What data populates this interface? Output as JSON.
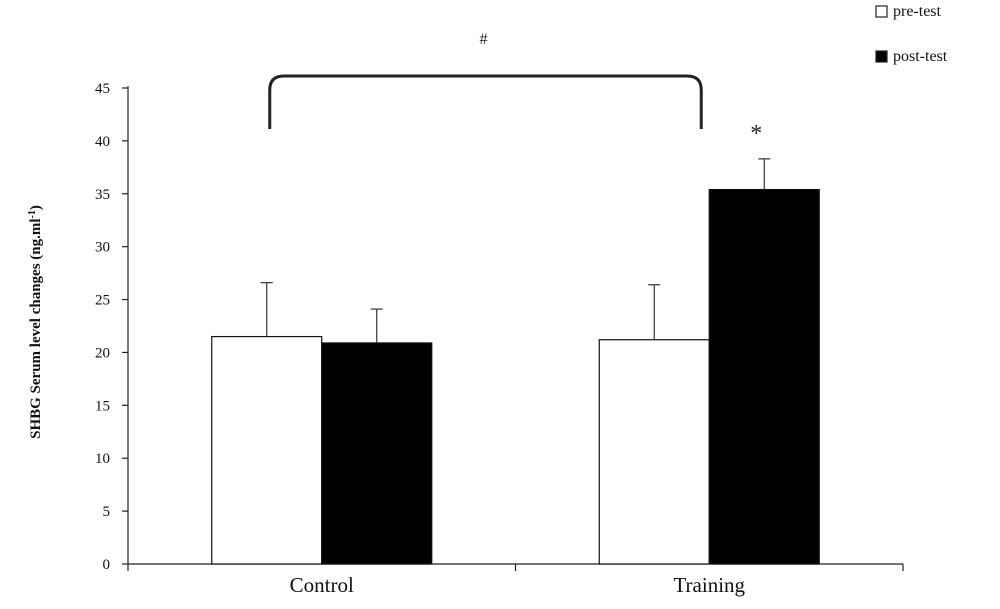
{
  "chart_data": {
    "type": "bar",
    "categories": [
      "Control",
      "Training"
    ],
    "series": [
      {
        "name": "pre-test",
        "values": [
          21.5,
          21.2
        ],
        "errors": [
          5.1,
          5.2
        ],
        "color": "#ffffff"
      },
      {
        "name": "post-test",
        "values": [
          20.9,
          35.4
        ],
        "errors": [
          3.2,
          2.9
        ],
        "color": "#000000"
      }
    ],
    "ylabel": "SHBG Serum level changes (ng.ml",
    "ylabel_sup": "-1",
    "ylabel_end": ")",
    "ylim": [
      0,
      45
    ],
    "yticks": [
      0,
      5,
      10,
      15,
      20,
      25,
      30,
      35,
      40,
      45
    ],
    "grid": false,
    "legend_position": "top-right",
    "annotations": {
      "group_bracket_symbol": "#",
      "significance_symbol": "*"
    }
  }
}
